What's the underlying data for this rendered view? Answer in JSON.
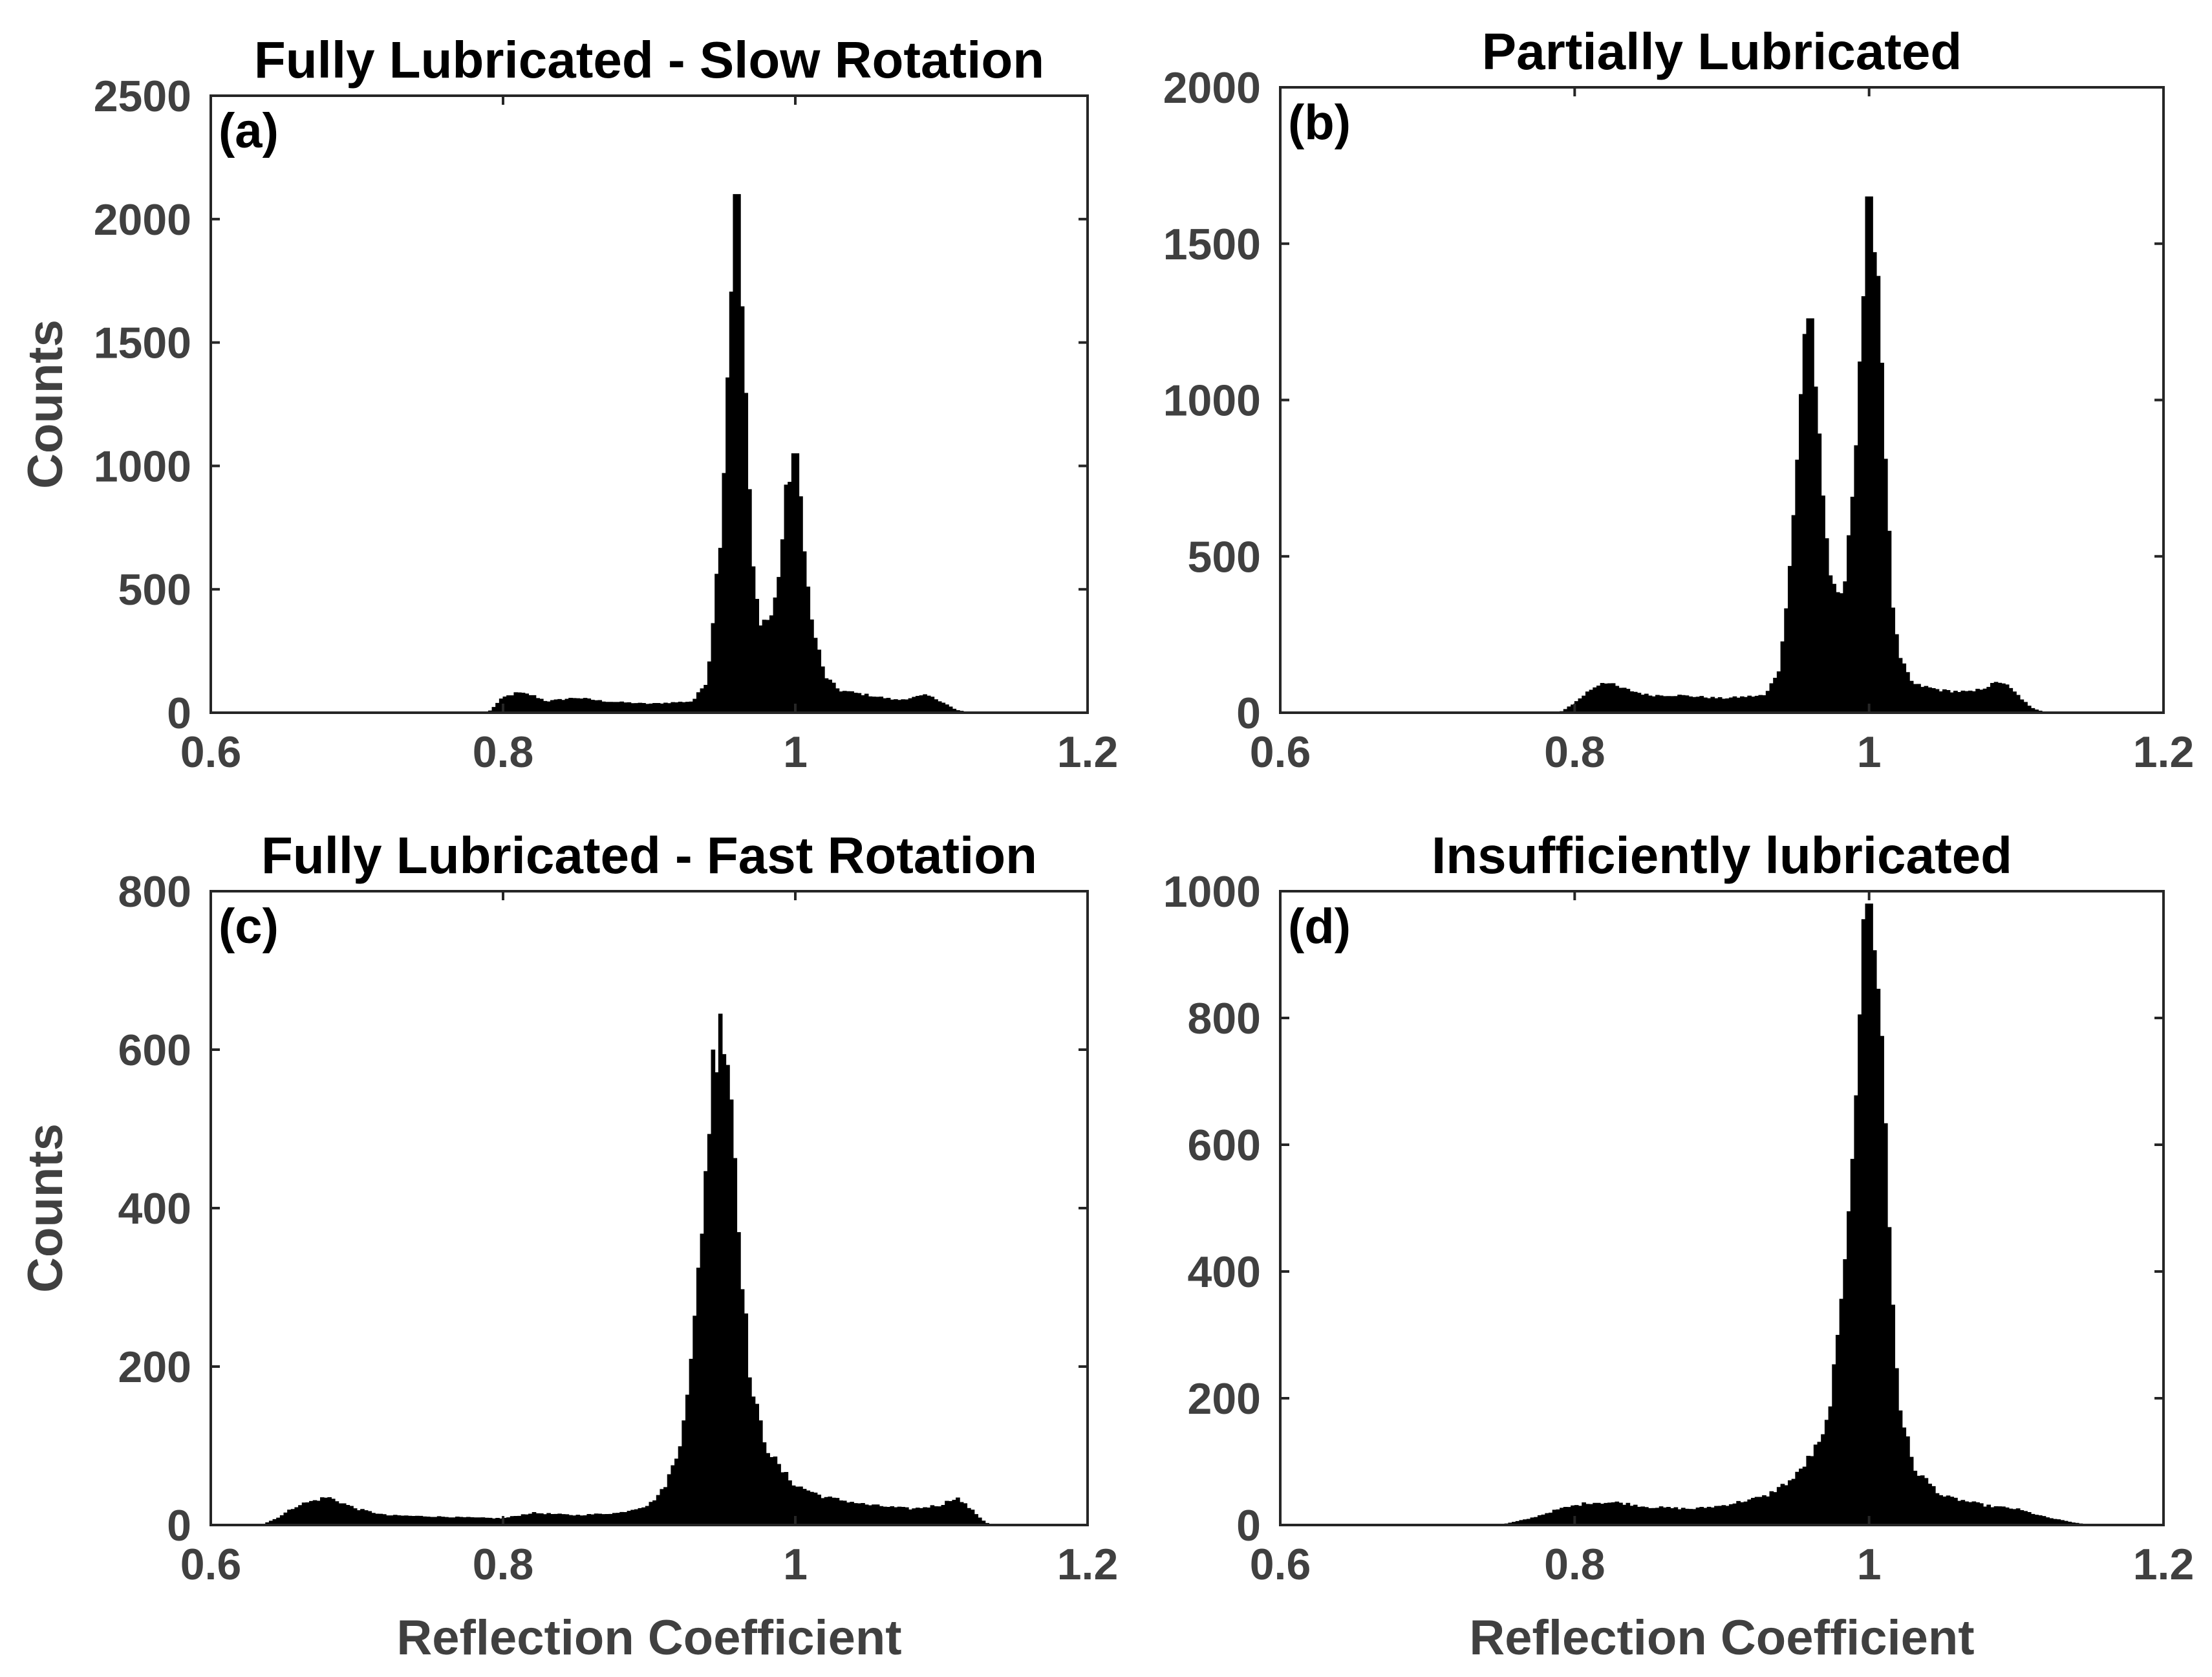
{
  "chart_data": [
    {
      "type": "bar",
      "id": "a",
      "title": "Fully Lubricated - Slow Rotation",
      "panel_label": "(a)",
      "xlabel": "",
      "ylabel": "Counts",
      "xlim": [
        0.6,
        1.2
      ],
      "ylim": [
        0,
        2500
      ],
      "xticks": [
        0.6,
        0.8,
        1.0,
        1.2
      ],
      "xtick_labels": [
        "0.6",
        "0.8",
        "1",
        "1.2"
      ],
      "yticks": [
        0,
        500,
        1000,
        1500,
        2000,
        2500
      ],
      "ytick_labels": [
        "0",
        "500",
        "1000",
        "1500",
        "2000",
        "2500"
      ],
      "bin_width": 0.0025,
      "profile": [
        [
          0.6,
          0
        ],
        [
          0.79,
          0
        ],
        [
          0.8,
          60
        ],
        [
          0.81,
          80
        ],
        [
          0.82,
          70
        ],
        [
          0.83,
          45
        ],
        [
          0.85,
          60
        ],
        [
          0.87,
          45
        ],
        [
          0.9,
          35
        ],
        [
          0.93,
          45
        ],
        [
          0.94,
          130
        ],
        [
          0.95,
          800
        ],
        [
          0.955,
          1600
        ],
        [
          0.96,
          2100
        ],
        [
          0.965,
          1500
        ],
        [
          0.97,
          650
        ],
        [
          0.975,
          380
        ],
        [
          0.98,
          370
        ],
        [
          0.985,
          400
        ],
        [
          0.99,
          620
        ],
        [
          0.995,
          950
        ],
        [
          1.0,
          1050
        ],
        [
          1.005,
          800
        ],
        [
          1.01,
          400
        ],
        [
          1.02,
          150
        ],
        [
          1.03,
          90
        ],
        [
          1.05,
          70
        ],
        [
          1.07,
          50
        ],
        [
          1.09,
          70
        ],
        [
          1.1,
          45
        ],
        [
          1.11,
          10
        ],
        [
          1.12,
          0
        ],
        [
          1.2,
          0
        ]
      ],
      "peaks": [
        {
          "x": 0.96,
          "y": 2100
        },
        {
          "x": 1.0,
          "y": 1050
        }
      ]
    },
    {
      "type": "bar",
      "id": "b",
      "title": "Partially Lubricated",
      "panel_label": "(b)",
      "xlabel": "",
      "ylabel": "",
      "xlim": [
        0.6,
        1.2
      ],
      "ylim": [
        0,
        2000
      ],
      "xticks": [
        0.6,
        0.8,
        1.0,
        1.2
      ],
      "xtick_labels": [
        "0.6",
        "0.8",
        "1",
        "1.2"
      ],
      "yticks": [
        0,
        500,
        1000,
        1500,
        2000
      ],
      "ytick_labels": [
        "0",
        "500",
        "1000",
        "1500",
        "2000"
      ],
      "bin_width": 0.0025,
      "profile": [
        [
          0.6,
          0
        ],
        [
          0.79,
          0
        ],
        [
          0.8,
          30
        ],
        [
          0.81,
          70
        ],
        [
          0.82,
          100
        ],
        [
          0.83,
          80
        ],
        [
          0.85,
          55
        ],
        [
          0.87,
          55
        ],
        [
          0.9,
          45
        ],
        [
          0.93,
          55
        ],
        [
          0.94,
          150
        ],
        [
          0.95,
          700
        ],
        [
          0.955,
          1150
        ],
        [
          0.96,
          1260
        ],
        [
          0.965,
          1000
        ],
        [
          0.97,
          600
        ],
        [
          0.975,
          400
        ],
        [
          0.98,
          350
        ],
        [
          0.985,
          450
        ],
        [
          0.99,
          800
        ],
        [
          0.995,
          1250
        ],
        [
          1.0,
          1650
        ],
        [
          1.005,
          1550
        ],
        [
          1.01,
          1000
        ],
        [
          1.015,
          400
        ],
        [
          1.02,
          180
        ],
        [
          1.03,
          90
        ],
        [
          1.05,
          70
        ],
        [
          1.07,
          65
        ],
        [
          1.09,
          100
        ],
        [
          1.1,
          60
        ],
        [
          1.11,
          15
        ],
        [
          1.12,
          0
        ],
        [
          1.2,
          0
        ]
      ],
      "peaks": [
        {
          "x": 0.96,
          "y": 1260
        },
        {
          "x": 1.0,
          "y": 1650
        }
      ]
    },
    {
      "type": "bar",
      "id": "c",
      "title": "Fully Lubricated - Fast Rotation",
      "panel_label": "(c)",
      "xlabel": "Reflection Coefficient",
      "ylabel": "Counts",
      "xlim": [
        0.6,
        1.2
      ],
      "ylim": [
        0,
        800
      ],
      "xticks": [
        0.6,
        0.8,
        1.0,
        1.2
      ],
      "xtick_labels": [
        "0.6",
        "0.8",
        "1",
        "1.2"
      ],
      "yticks": [
        0,
        200,
        400,
        600,
        800
      ],
      "ytick_labels": [
        "0",
        "200",
        "400",
        "600",
        "800"
      ],
      "bin_width": 0.0025,
      "profile": [
        [
          0.6,
          0
        ],
        [
          0.635,
          0
        ],
        [
          0.645,
          8
        ],
        [
          0.66,
          25
        ],
        [
          0.68,
          35
        ],
        [
          0.7,
          20
        ],
        [
          0.72,
          12
        ],
        [
          0.76,
          10
        ],
        [
          0.8,
          8
        ],
        [
          0.82,
          15
        ],
        [
          0.85,
          12
        ],
        [
          0.88,
          15
        ],
        [
          0.9,
          25
        ],
        [
          0.91,
          45
        ],
        [
          0.92,
          90
        ],
        [
          0.93,
          220
        ],
        [
          0.94,
          480
        ],
        [
          0.945,
          610
        ],
        [
          0.95,
          620
        ],
        [
          0.955,
          580
        ],
        [
          0.96,
          430
        ],
        [
          0.965,
          280
        ],
        [
          0.97,
          170
        ],
        [
          0.98,
          100
        ],
        [
          0.99,
          70
        ],
        [
          1.0,
          50
        ],
        [
          1.02,
          35
        ],
        [
          1.05,
          25
        ],
        [
          1.08,
          20
        ],
        [
          1.1,
          25
        ],
        [
          1.11,
          35
        ],
        [
          1.12,
          20
        ],
        [
          1.13,
          3
        ],
        [
          1.135,
          0
        ],
        [
          1.2,
          0
        ]
      ],
      "peaks": [
        {
          "x": 0.948,
          "y": 645
        }
      ]
    },
    {
      "type": "bar",
      "id": "d",
      "title": "Insufficiently lubricated",
      "panel_label": "(d)",
      "xlabel": "Reflection Coefficient",
      "ylabel": "",
      "xlim": [
        0.6,
        1.2
      ],
      "ylim": [
        0,
        1000
      ],
      "xticks": [
        0.6,
        0.8,
        1.0,
        1.2
      ],
      "xtick_labels": [
        "0.6",
        "0.8",
        "1",
        "1.2"
      ],
      "yticks": [
        0,
        200,
        400,
        600,
        800,
        1000
      ],
      "ytick_labels": [
        "0",
        "200",
        "400",
        "600",
        "800",
        "1000"
      ],
      "bin_width": 0.0025,
      "profile": [
        [
          0.6,
          0
        ],
        [
          0.75,
          0
        ],
        [
          0.77,
          10
        ],
        [
          0.79,
          25
        ],
        [
          0.81,
          35
        ],
        [
          0.83,
          35
        ],
        [
          0.85,
          28
        ],
        [
          0.88,
          25
        ],
        [
          0.9,
          30
        ],
        [
          0.93,
          45
        ],
        [
          0.95,
          75
        ],
        [
          0.97,
          140
        ],
        [
          0.98,
          300
        ],
        [
          0.99,
          650
        ],
        [
          0.995,
          880
        ],
        [
          1.0,
          980
        ],
        [
          1.005,
          930
        ],
        [
          1.01,
          700
        ],
        [
          1.015,
          400
        ],
        [
          1.02,
          200
        ],
        [
          1.03,
          90
        ],
        [
          1.05,
          45
        ],
        [
          1.08,
          30
        ],
        [
          1.1,
          25
        ],
        [
          1.12,
          12
        ],
        [
          1.14,
          3
        ],
        [
          1.15,
          0
        ],
        [
          1.2,
          0
        ]
      ],
      "peaks": [
        {
          "x": 1.0,
          "y": 980
        }
      ]
    }
  ]
}
